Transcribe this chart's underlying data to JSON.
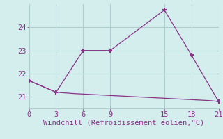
{
  "line1_x": [
    0,
    3,
    6,
    9,
    15,
    18,
    21
  ],
  "line1_y": [
    21.7,
    21.2,
    23.0,
    23.0,
    24.75,
    22.8,
    20.8
  ],
  "line2_x": [
    0,
    3,
    4,
    5,
    6,
    7,
    8,
    9,
    10,
    11,
    12,
    13,
    14,
    15,
    16,
    17,
    18,
    19,
    20,
    21
  ],
  "line2_y": [
    21.7,
    21.2,
    21.17,
    21.14,
    21.12,
    21.1,
    21.08,
    21.06,
    21.04,
    21.02,
    21.0,
    20.98,
    20.96,
    20.94,
    20.92,
    20.9,
    20.88,
    20.86,
    20.84,
    20.8
  ],
  "line_color": "#883388",
  "bg_color": "#d4eeed",
  "grid_color": "#b0cece",
  "xlabel": "Windchill (Refroidissement éolien,°C)",
  "xlim": [
    0,
    21
  ],
  "ylim": [
    20.5,
    25.0
  ],
  "xticks": [
    0,
    3,
    6,
    9,
    15,
    18,
    21
  ],
  "yticks": [
    21,
    22,
    23,
    24
  ],
  "xlabel_fontsize": 7.5,
  "tick_fontsize": 7.5,
  "spine_color": "#888888"
}
